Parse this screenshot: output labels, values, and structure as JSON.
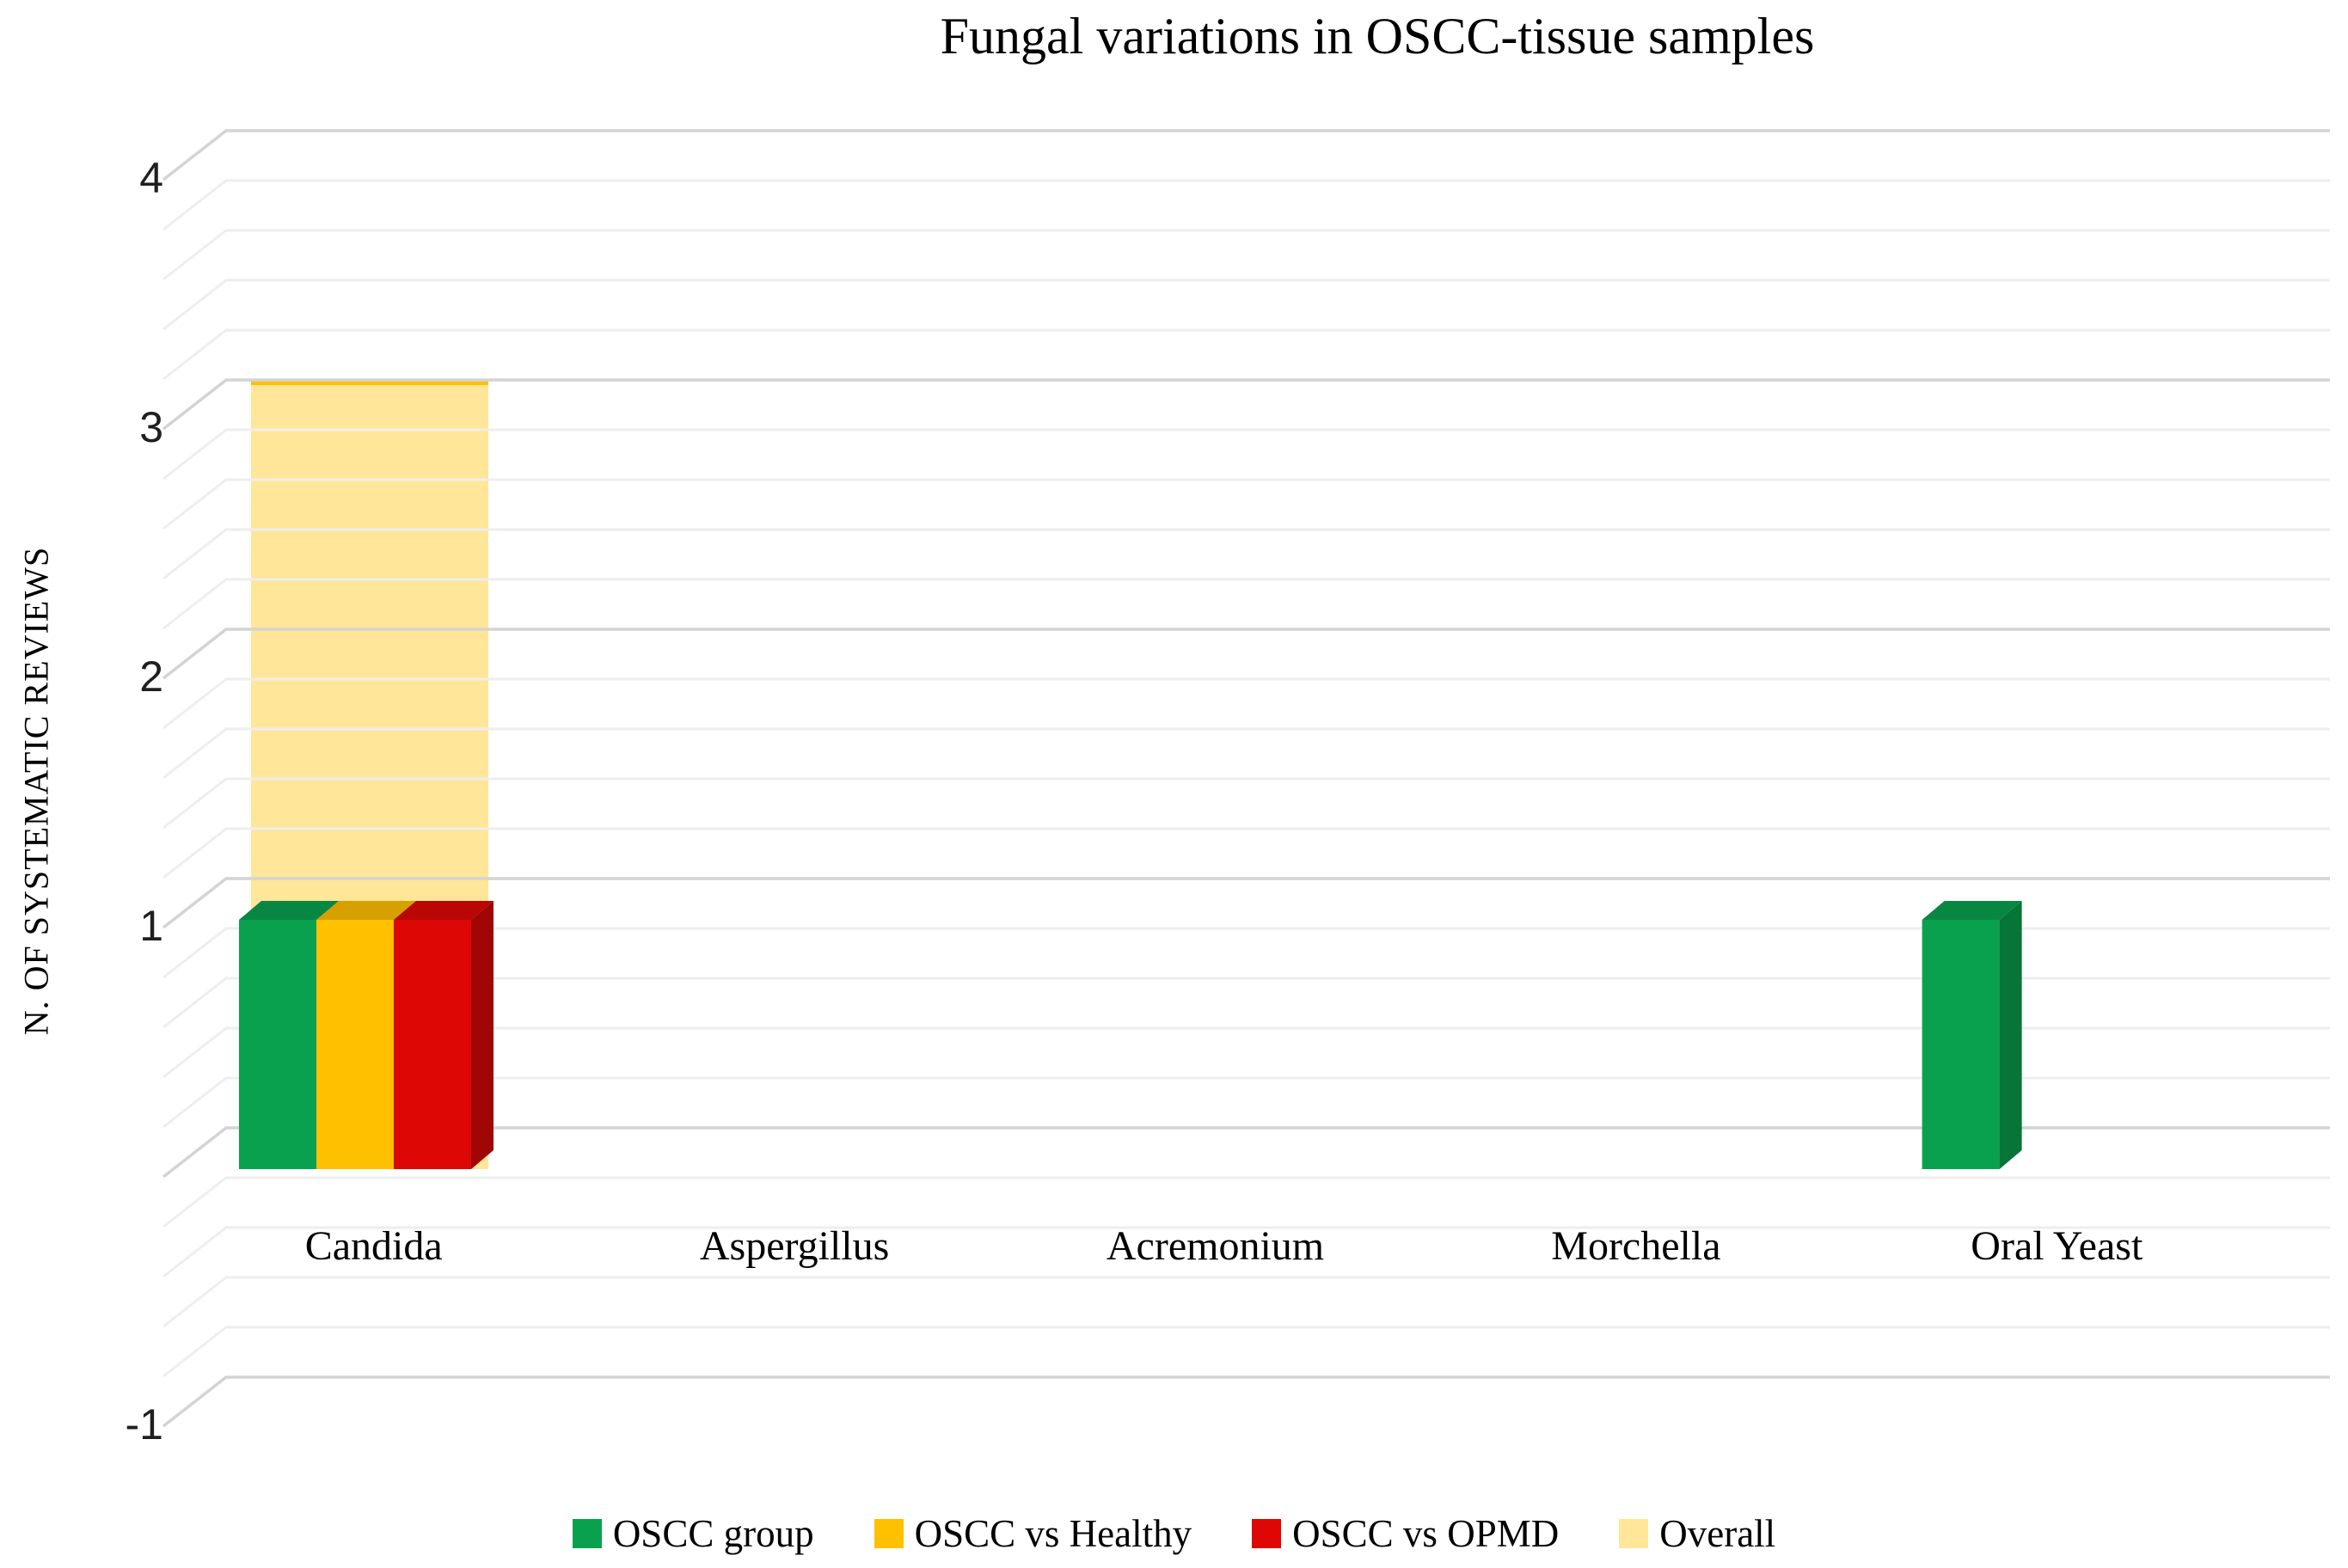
{
  "chart_data": {
    "type": "bar",
    "variant": "3d-clustered-column",
    "title": "Fungal variations in OSCC-tissue samples",
    "xlabel": "",
    "ylabel": "N. OF SYSTEMATIC REVIEWS",
    "categories": [
      "Candida",
      "Aspergillus",
      "Acremonium",
      "Morchella",
      "Oral Yeast"
    ],
    "series": [
      {
        "name": "OSCC group",
        "color": "#0aa14e",
        "values": [
          1,
          0,
          0,
          0,
          1
        ]
      },
      {
        "name": "OSCC vs Healthy",
        "color": "#ffc000",
        "values": [
          1,
          0,
          0,
          0,
          0
        ]
      },
      {
        "name": "OSCC vs OPMD",
        "color": "#dd0806",
        "values": [
          1,
          0,
          0,
          0,
          0
        ]
      },
      {
        "name": "Overall",
        "color": "#ffe699",
        "values": [
          3,
          0,
          0,
          0,
          0
        ],
        "behind": true,
        "top_edge_color": "#ffc000"
      }
    ],
    "ylim": [
      -1,
      4
    ],
    "y_major_unit": 1,
    "y_minor_unit": 0.2,
    "y_ticks": [
      {
        "value": 4,
        "label": "4"
      },
      {
        "value": 3,
        "label": "3"
      },
      {
        "value": 2,
        "label": "2"
      },
      {
        "value": 1,
        "label": "1"
      },
      {
        "value": -1,
        "label": "-1"
      }
    ],
    "grid": true,
    "legend_position": "bottom",
    "colors": {
      "grid_major": "#d4d4d4",
      "grid_minor": "#eeeeee",
      "background": "#ffffff",
      "tick_text": "#1f1f1f",
      "text": "#000000"
    }
  }
}
